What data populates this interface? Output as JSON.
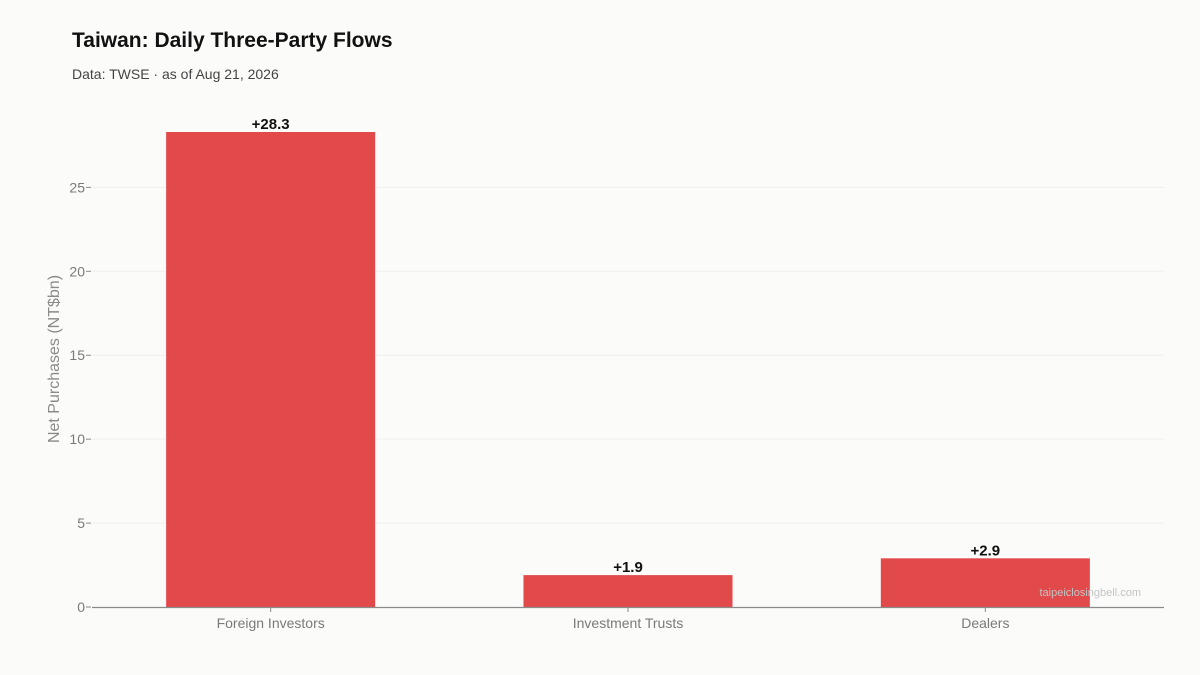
{
  "chart_data": {
    "type": "bar",
    "title": "Taiwan: Daily Three-Party Flows",
    "subtitle": "Data: TWSE · as of Aug 21, 2026",
    "xlabel": "",
    "ylabel": "Net Purchases (NT$bn)",
    "categories": [
      "Foreign Investors",
      "Investment Trusts",
      "Dealers"
    ],
    "values": [
      28.3,
      1.9,
      2.9
    ],
    "data_labels": [
      "+28.3",
      "+1.9",
      "+2.9"
    ],
    "ylim": [
      0,
      28.3
    ],
    "yticks": [
      0,
      5,
      10,
      15,
      20,
      25
    ],
    "grid": true,
    "bar_color": "#e2494a",
    "watermark": "taipeiclosingbell.com"
  }
}
